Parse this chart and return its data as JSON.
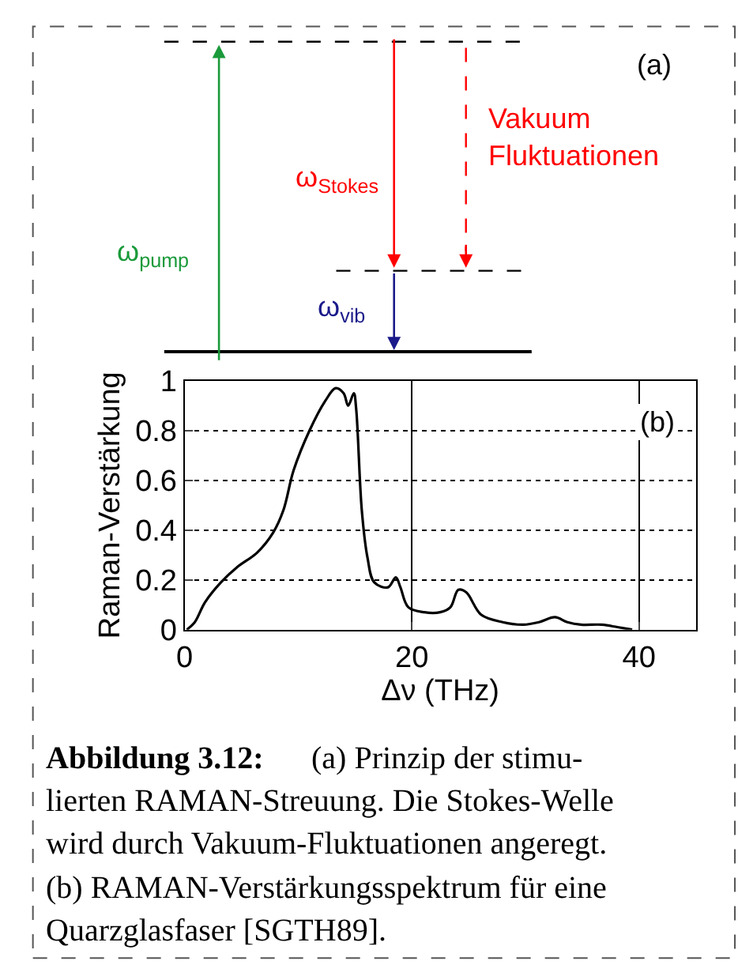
{
  "chart_data": [
    {
      "type": "other",
      "annotations": [
        "(a)",
        "Vakuum\nFluktuationen",
        "ω$_{Stokes}$",
        "ω$_{pump}$",
        "ω$_{vib}$"
      ]
    },
    {
      "type": "line",
      "xlabel": "Δν (THz)",
      "ylabel": "Raman-Verstärkung",
      "x": [
        0.2,
        0.9,
        1.8,
        3.2,
        4.6,
        6.4,
        7.8,
        8.7,
        9.6,
        11,
        12.4,
        13.3,
        14,
        14.4,
        14.9,
        15.1,
        15.6,
        16.1,
        16.7,
        17.9,
        18.6,
        19,
        19.7,
        21.1,
        22.5,
        23.4,
        24.1,
        24.8,
        26.1,
        28,
        29.8,
        31.2,
        32.6,
        33.7,
        34.9,
        36.7,
        38.1,
        39.4
      ],
      "series": [
        {
          "color": "#000000",
          "values": [
            0,
            0.03,
            0.11,
            0.19,
            0.25,
            0.31,
            0.39,
            0.48,
            0.64,
            0.8,
            0.92,
            0.97,
            0.95,
            0.9,
            0.95,
            0.89,
            0.48,
            0.29,
            0.19,
            0.17,
            0.21,
            0.17,
            0.09,
            0.07,
            0.07,
            0.09,
            0.16,
            0.15,
            0.06,
            0.03,
            0.02,
            0.03,
            0.05,
            0.03,
            0.02,
            0.02,
            0.01,
            0
          ]
        }
      ],
      "xlim": [
        0,
        45
      ],
      "xticks": [
        0,
        20,
        40
      ],
      "ylim": [
        0,
        1
      ],
      "yticks": [
        0,
        {
          "value": 0.2,
          "label": "0.2"
        },
        {
          "value": 0.4,
          "label": "0.4"
        },
        {
          "value": 0.6,
          "label": "0.6"
        },
        {
          "value": 0.8,
          "label": "0.8"
        },
        1
      ],
      "grid": true,
      "annotations": [
        "(b)",
        "Abbildung 3.12:",
        "(a) Prinzip der stimu-",
        "lierten RAMAN-Streuung. Die Stokes-Welle\nwird durch Vakuum-Fluktuationen angeregt.\n(b) RAMAN-Verstärkungsspektrum für eine\nQuarzglasfaser [SGTH89]."
      ]
    }
  ]
}
